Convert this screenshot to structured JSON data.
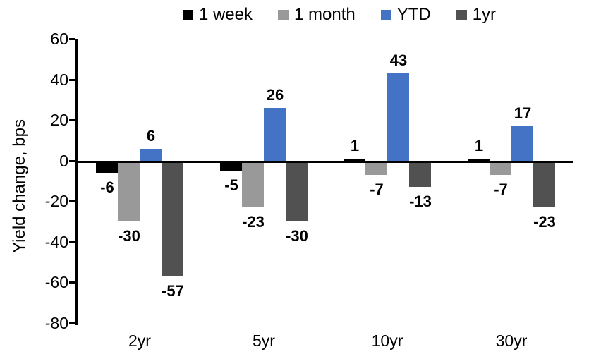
{
  "chart_data": {
    "type": "bar",
    "title": "",
    "ylabel": "Yield change, bps",
    "xlabel": "",
    "categories": [
      "2yr",
      "5yr",
      "10yr",
      "30yr"
    ],
    "series": [
      {
        "name": "1 week",
        "color": "#000000",
        "values": [
          -6,
          -5,
          1,
          1
        ]
      },
      {
        "name": "1 month",
        "color": "#999999",
        "values": [
          -30,
          -23,
          -7,
          -7
        ]
      },
      {
        "name": "YTD",
        "color": "#4472C4",
        "values": [
          6,
          26,
          43,
          17
        ]
      },
      {
        "name": "1yr",
        "color": "#515151",
        "values": [
          -57,
          -30,
          -13,
          -23
        ]
      }
    ],
    "ylim": [
      -80,
      60
    ],
    "ytick_step": 20,
    "yticks": [
      60,
      40,
      20,
      0,
      -20,
      -40,
      -60,
      -80
    ],
    "grid": false,
    "legend_position": "top",
    "data_labels": true,
    "axis_color": "#000000",
    "background_color": "#FFFFFF"
  }
}
